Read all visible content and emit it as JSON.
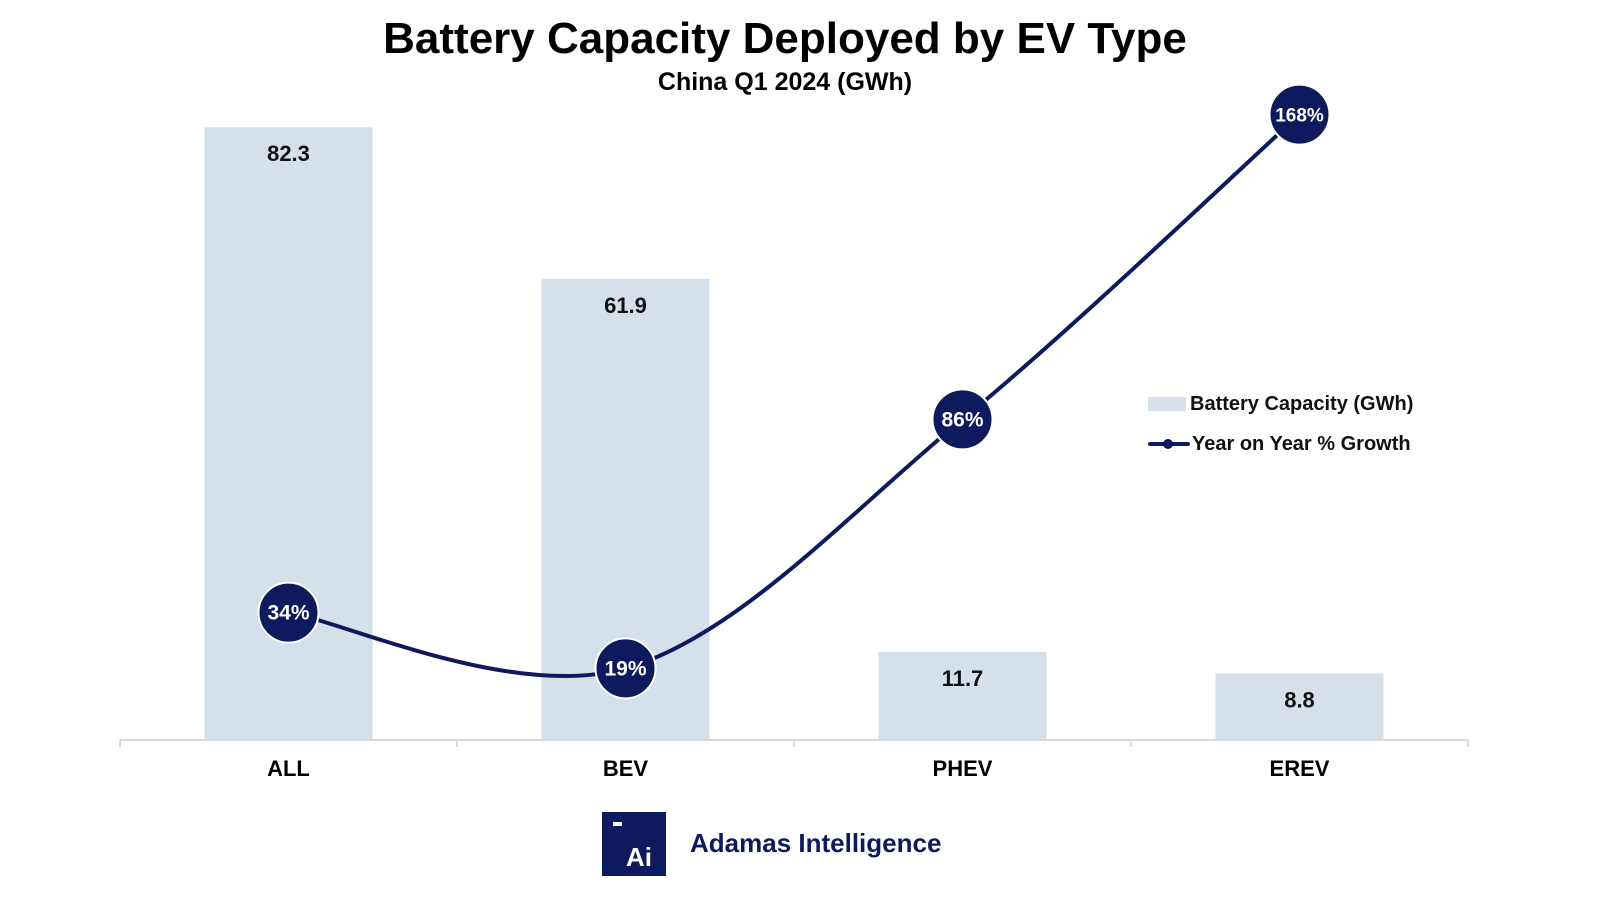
{
  "chart_data": {
    "type": "bar",
    "title": "Battery Capacity Deployed by EV Type",
    "subtitle": "China Q1 2024 (GWh)",
    "categories": [
      "ALL",
      "BEV",
      "PHEV",
      "EREV"
    ],
    "series": [
      {
        "name": "Battery Capacity (GWh)",
        "type": "bar",
        "axis": "primary",
        "values": [
          82.3,
          61.9,
          11.7,
          8.8
        ],
        "labels": [
          "82.3",
          "61.9",
          "11.7",
          "8.8"
        ],
        "color": "#d6e0ea"
      },
      {
        "name": "Year on Year % Growth",
        "type": "line",
        "smooth": true,
        "axis": "secondary",
        "values": [
          34,
          19,
          86,
          168
        ],
        "labels": [
          "34%",
          "19%",
          "86%",
          "168%"
        ],
        "color": "#0d1b5e"
      }
    ],
    "ylim": [
      0,
      90
    ],
    "y2lim": [
      0,
      180
    ],
    "grid": false,
    "legend": "right"
  },
  "branding": {
    "logo_text": "Ai",
    "name": "Adamas Intelligence",
    "color": "#0d1b5e"
  }
}
